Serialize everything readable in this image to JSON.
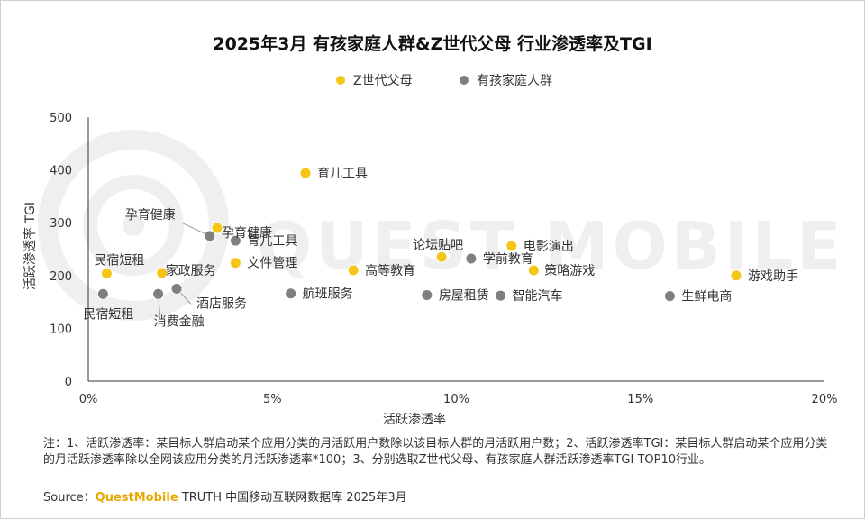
{
  "chart_data": {
    "type": "scatter",
    "title": "2025年3月 有孩家庭人群&Z世代父母 行业渗透率及TGI",
    "xlabel": "活跃渗透率",
    "ylabel": "活跃渗透率 TGI",
    "xlim": [
      0,
      20
    ],
    "ylim": [
      0,
      500
    ],
    "x_ticks": [
      "0%",
      "5%",
      "10%",
      "15%",
      "20%"
    ],
    "y_ticks": [
      "0",
      "100",
      "200",
      "300",
      "400",
      "500"
    ],
    "legend_position": "top",
    "series": [
      {
        "name": "Z世代父母",
        "color": "#f5c518",
        "points": [
          {
            "x": 5.9,
            "y": 394,
            "label": "育儿工具"
          },
          {
            "x": 3.5,
            "y": 290,
            "label": "孕育健康"
          },
          {
            "x": 4.0,
            "y": 224,
            "label": "文件管理"
          },
          {
            "x": 2.0,
            "y": 205,
            "label": "家政服务"
          },
          {
            "x": 0.5,
            "y": 204,
            "label": "民宿短租"
          },
          {
            "x": 7.2,
            "y": 210,
            "label": "高等教育"
          },
          {
            "x": 9.6,
            "y": 235,
            "label": "论坛贴吧"
          },
          {
            "x": 11.5,
            "y": 256,
            "label": "电影演出"
          },
          {
            "x": 12.1,
            "y": 210,
            "label": "策略游戏"
          },
          {
            "x": 17.6,
            "y": 200,
            "label": "游戏助手"
          }
        ]
      },
      {
        "name": "有孩家庭人群",
        "color": "#7f7f7f",
        "points": [
          {
            "x": 3.3,
            "y": 275,
            "label": "孕育健康"
          },
          {
            "x": 4.0,
            "y": 266,
            "label": "育儿工具"
          },
          {
            "x": 2.4,
            "y": 175,
            "label": "酒店服务"
          },
          {
            "x": 1.9,
            "y": 165,
            "label": "消费金融"
          },
          {
            "x": 0.4,
            "y": 165,
            "label": "民宿短租"
          },
          {
            "x": 5.5,
            "y": 166,
            "label": "航班服务"
          },
          {
            "x": 9.2,
            "y": 163,
            "label": "房屋租赁"
          },
          {
            "x": 10.4,
            "y": 232,
            "label": "学前教育"
          },
          {
            "x": 11.2,
            "y": 162,
            "label": "智能汽车"
          },
          {
            "x": 15.8,
            "y": 161,
            "label": "生鲜电商"
          }
        ]
      }
    ]
  },
  "watermark": "QUEST MOBILE",
  "notes": "注：1、活跃渗透率：某目标人群启动某个应用分类的月活跃用户数除以该目标人群的月活跃用户数；2、活跃渗透率TGI：某目标人群启动某个应用分类的月活跃渗透率除以全网该应用分类的月活跃渗透率*100；3、分别选取Z世代父母、有孩家庭人群活跃渗透率TGI TOP10行业。",
  "source": {
    "prefix": "Source：",
    "brand": "QuestMobile",
    "suffix": " TRUTH 中国移动互联网数据库 2025年3月"
  }
}
